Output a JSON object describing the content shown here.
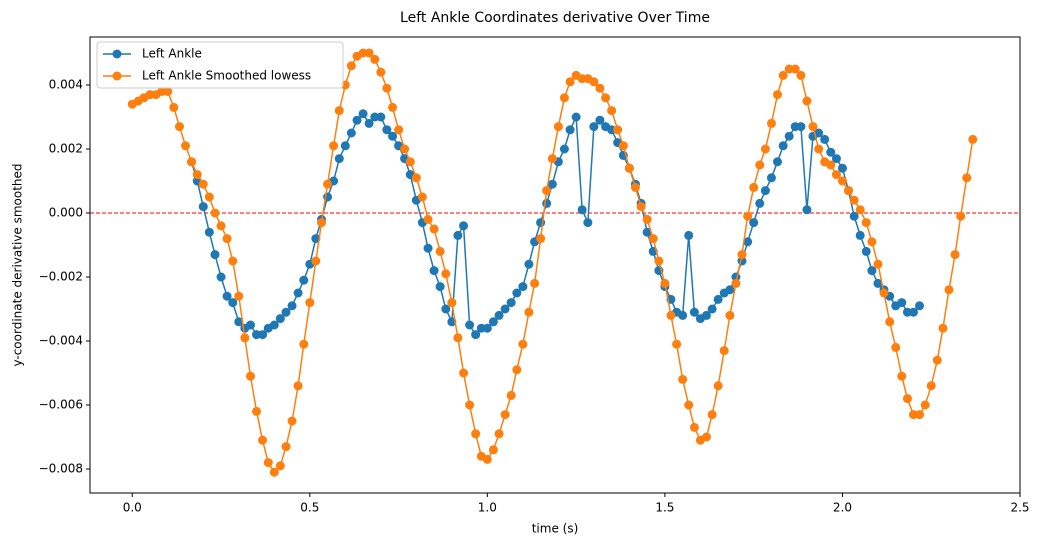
{
  "chart_data": {
    "type": "line",
    "title": "Left Ankle Coordinates derivative Over Time",
    "xlabel": "time (s)",
    "ylabel": "y-coordinate derivative  smoothed",
    "x": [
      0,
      0.017,
      0.033,
      0.05,
      0.067,
      0.083,
      0.1,
      0.117,
      0.133,
      0.15,
      0.167,
      0.183,
      0.2,
      0.217,
      0.233,
      0.25,
      0.267,
      0.283,
      0.3,
      0.317,
      0.333,
      0.35,
      0.367,
      0.383,
      0.4,
      0.417,
      0.433,
      0.45,
      0.467,
      0.483,
      0.5,
      0.517,
      0.533,
      0.55,
      0.567,
      0.583,
      0.6,
      0.617,
      0.633,
      0.65,
      0.667,
      0.683,
      0.7,
      0.717,
      0.733,
      0.75,
      0.767,
      0.783,
      0.8,
      0.817,
      0.833,
      0.85,
      0.867,
      0.883,
      0.9,
      0.917,
      0.933,
      0.95,
      0.967,
      0.983,
      1,
      1.017,
      1.033,
      1.05,
      1.067,
      1.083,
      1.1,
      1.117,
      1.133,
      1.15,
      1.167,
      1.183,
      1.2,
      1.217,
      1.233,
      1.25,
      1.267,
      1.283,
      1.3,
      1.317,
      1.333,
      1.35,
      1.367,
      1.383,
      1.4,
      1.417,
      1.433,
      1.45,
      1.467,
      1.483,
      1.5,
      1.517,
      1.533,
      1.55,
      1.567,
      1.583,
      1.6,
      1.617,
      1.633,
      1.65,
      1.667,
      1.683,
      1.7,
      1.717,
      1.733,
      1.75,
      1.767,
      1.783,
      1.8,
      1.817,
      1.833,
      1.85,
      1.867,
      1.883,
      1.9,
      1.917,
      1.933,
      1.95,
      1.967,
      1.983,
      2,
      2.017,
      2.033,
      2.05,
      2.067,
      2.083,
      2.1,
      2.117,
      2.133,
      2.15,
      2.167,
      2.183,
      2.2,
      2.217,
      2.233,
      2.25,
      2.267,
      2.283,
      2.3,
      2.317,
      2.333,
      2.35,
      2.367
    ],
    "series": [
      {
        "name": "Left Ankle",
        "color": "#1f77b4",
        "values": [
          null,
          null,
          null,
          null,
          null,
          null,
          null,
          null,
          null,
          null,
          0.0016,
          0.001,
          0.0002,
          -0.0006,
          -0.0013,
          -0.002,
          -0.0026,
          -0.0028,
          -0.0034,
          -0.0036,
          -0.0035,
          -0.0038,
          -0.0038,
          -0.0036,
          -0.0035,
          -0.0033,
          -0.0031,
          -0.0029,
          -0.0025,
          -0.0021,
          -0.0016,
          -0.0008,
          -0.0002,
          0.0005,
          0.001,
          0.0017,
          0.0021,
          0.0025,
          0.0029,
          0.0031,
          0.0028,
          0.003,
          0.003,
          0.0026,
          0.0024,
          0.0021,
          0.0017,
          0.0012,
          0.0004,
          -0.0003,
          -0.0011,
          -0.0018,
          -0.0023,
          -0.003,
          -0.0034,
          -0.0007,
          -0.0004,
          -0.0035,
          -0.0038,
          -0.0036,
          -0.0036,
          -0.0034,
          -0.0032,
          -0.003,
          -0.0028,
          -0.0025,
          -0.0023,
          -0.0016,
          -0.0009,
          -0.0003,
          0.0003,
          0.0009,
          0.0016,
          0.002,
          0.0026,
          0.003,
          0.0001,
          -0.0003,
          0.0027,
          0.0029,
          0.0027,
          0.0026,
          0.0022,
          0.0018,
          0.0014,
          0.0009,
          0.0003,
          -0.0006,
          -0.0012,
          -0.0018,
          -0.0023,
          -0.0027,
          -0.0031,
          -0.0032,
          -0.0007,
          -0.0031,
          -0.0033,
          -0.0032,
          -0.003,
          -0.0027,
          -0.0025,
          -0.0024,
          -0.002,
          -0.0015,
          -0.0009,
          -0.0003,
          0.0003,
          0.0007,
          0.0011,
          0.0016,
          0.0021,
          0.0024,
          0.0027,
          0.0027,
          0.0001,
          0.0024,
          0.0025,
          0.0023,
          0.0019,
          0.0017,
          0.0014,
          0.0007,
          -0.0001,
          -0.0007,
          -0.0012,
          -0.0018,
          -0.0022,
          -0.0024,
          -0.0026,
          -0.0029,
          -0.0028,
          -0.0031,
          -0.0031,
          -0.0029,
          null,
          null,
          null,
          null,
          null,
          null,
          null,
          null,
          null
        ]
      },
      {
        "name": "Left Ankle Smoothed lowess",
        "color": "#ff7f0e",
        "values": [
          0.0034,
          0.0035,
          0.0036,
          0.0037,
          0.0037,
          0.0038,
          0.0038,
          0.0033,
          0.0027,
          0.0021,
          0.0016,
          0.0012,
          0.0009,
          0.0005,
          0,
          -0.0004,
          -0.0008,
          -0.0015,
          -0.0026,
          -0.0039,
          -0.0051,
          -0.0062,
          -0.0071,
          -0.0078,
          -0.0081,
          -0.0079,
          -0.0073,
          -0.0065,
          -0.0054,
          -0.0041,
          -0.0028,
          -0.0015,
          -0.0003,
          0.0009,
          0.0021,
          0.0032,
          0.004,
          0.0046,
          0.0049,
          0.005,
          0.005,
          0.0048,
          0.0044,
          0.0039,
          0.0033,
          0.0026,
          0.002,
          0.0016,
          0.0011,
          0.0005,
          -0.0002,
          -0.0005,
          -0.0012,
          -0.0019,
          -0.0028,
          -0.0039,
          -0.005,
          -0.006,
          -0.0069,
          -0.0076,
          -0.0077,
          -0.0074,
          -0.0069,
          -0.0063,
          -0.0057,
          -0.0049,
          -0.0041,
          -0.0031,
          -0.0022,
          -0.0008,
          0.0007,
          0.0017,
          0.0027,
          0.0036,
          0.0041,
          0.0043,
          0.0042,
          0.0042,
          0.0041,
          0.0039,
          0.0036,
          0.0032,
          0.0026,
          0.0021,
          0.0014,
          0.0008,
          0.0002,
          -0.0002,
          -0.0008,
          -0.0015,
          -0.0022,
          -0.0032,
          -0.0041,
          -0.0052,
          -0.006,
          -0.0067,
          -0.0071,
          -0.007,
          -0.0063,
          -0.0054,
          -0.0043,
          -0.0032,
          -0.0022,
          -0.0013,
          -0.0001,
          0.0008,
          0.0015,
          0.002,
          0.0028,
          0.0037,
          0.0043,
          0.0045,
          0.0045,
          0.0043,
          0.0035,
          0.0027,
          0.002,
          0.0016,
          0.0015,
          0.0012,
          0.001,
          0.0007,
          0.0004,
          0.0001,
          -0.0003,
          -0.0009,
          -0.0016,
          -0.0025,
          -0.0034,
          -0.0042,
          -0.0051,
          -0.0058,
          -0.0063,
          -0.0063,
          -0.006,
          -0.0054,
          -0.0046,
          -0.0036,
          -0.0024,
          -0.0013,
          -0.0001,
          0.0011,
          0.0023
        ]
      }
    ],
    "hline": {
      "y": 0,
      "color": "#ff0000"
    },
    "xlim": [
      -0.119,
      2.5
    ],
    "xticks": [
      {
        "value": 0,
        "label": "0.0"
      },
      {
        "value": 0.5,
        "label": "0.5"
      },
      {
        "value": 1,
        "label": "1.0"
      },
      {
        "value": 1.5,
        "label": "1.5"
      },
      {
        "value": 2,
        "label": "2.0"
      },
      {
        "value": 2.5,
        "label": "2.5"
      }
    ],
    "ylim": [
      -0.00875,
      0.0055
    ],
    "yticks": [
      {
        "value": -0.008,
        "label": "−0.008"
      },
      {
        "value": -0.006,
        "label": "−0.006"
      },
      {
        "value": -0.004,
        "label": "−0.004"
      },
      {
        "value": -0.002,
        "label": "−0.002"
      },
      {
        "value": 0,
        "label": "0.000"
      },
      {
        "value": 0.002,
        "label": "0.002"
      },
      {
        "value": 0.004,
        "label": "0.004"
      }
    ],
    "grid": false,
    "legend": "upper left"
  }
}
